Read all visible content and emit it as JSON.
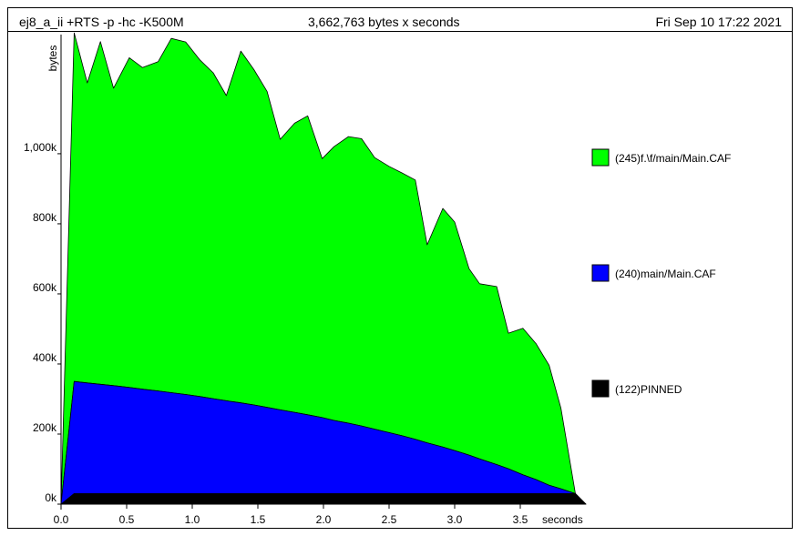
{
  "header": {
    "title": "ej8_a_ii +RTS -p -hc -K500M",
    "summary": "3,662,763 bytes x seconds",
    "date": "Fri Sep 10 17:22 2021"
  },
  "chart_data": {
    "type": "area",
    "stacked": true,
    "xlabel": "seconds",
    "ylabel": "bytes",
    "xlim": [
      0,
      4.0
    ],
    "ylim": [
      0,
      1340000
    ],
    "x_ticks": [
      {
        "value": 0.0,
        "label": "0.0"
      },
      {
        "value": 0.5,
        "label": "0.5"
      },
      {
        "value": 1.0,
        "label": "1.0"
      },
      {
        "value": 1.5,
        "label": "1.5"
      },
      {
        "value": 2.0,
        "label": "2.0"
      },
      {
        "value": 2.5,
        "label": "2.5"
      },
      {
        "value": 3.0,
        "label": "3.0"
      },
      {
        "value": 3.5,
        "label": "3.5"
      }
    ],
    "y_ticks": [
      {
        "value": 0,
        "label": "0k"
      },
      {
        "value": 200000,
        "label": "200k"
      },
      {
        "value": 400000,
        "label": "400k"
      },
      {
        "value": 600000,
        "label": "600k"
      },
      {
        "value": 800000,
        "label": "800k"
      },
      {
        "value": 1000000,
        "label": "1,000k"
      }
    ],
    "x": [
      0.0,
      0.1,
      0.2,
      0.3,
      0.4,
      0.52,
      0.62,
      0.74,
      0.84,
      0.95,
      1.06,
      1.16,
      1.26,
      1.37,
      1.47,
      1.57,
      1.67,
      1.78,
      1.88,
      1.99,
      2.08,
      2.19,
      2.29,
      2.39,
      2.5,
      2.6,
      2.7,
      2.79,
      2.91,
      3.0,
      3.11,
      3.19,
      3.32,
      3.41,
      3.52,
      3.62,
      3.72,
      3.81,
      3.92,
      4.0
    ],
    "series": [
      {
        "name": "(122)PINNED",
        "color": "#000000",
        "values": [
          0,
          30000,
          30000,
          30000,
          30000,
          30000,
          30000,
          30000,
          30000,
          30000,
          30000,
          30000,
          30000,
          30000,
          30000,
          30000,
          30000,
          30000,
          30000,
          30000,
          30000,
          30000,
          30000,
          30000,
          30000,
          30000,
          30000,
          30000,
          30000,
          30000,
          30000,
          30000,
          30000,
          30000,
          30000,
          30000,
          30000,
          30000,
          30000,
          0
        ]
      },
      {
        "name": "(240)main/Main.CAF",
        "color": "#0000ff",
        "values": [
          0,
          320000,
          316000,
          312000,
          308000,
          303000,
          298000,
          293000,
          288000,
          283000,
          277000,
          271000,
          265000,
          259000,
          253000,
          246000,
          239000,
          232000,
          225000,
          217000,
          209000,
          201000,
          193000,
          184000,
          174000,
          165000,
          155000,
          145000,
          133000,
          123000,
          110000,
          99000,
          83000,
          71000,
          54000,
          40000,
          24000,
          14000,
          0,
          0
        ]
      },
      {
        "name": "(245)f.\\f/main/Main.CAF",
        "color": "#00ff00",
        "values": [
          0,
          995000,
          856000,
          978000,
          849000,
          941000,
          918000,
          940000,
          1011000,
          1006000,
          960000,
          930000,
          871000,
          1004000,
          957000,
          902000,
          772000,
          825000,
          853000,
          739000,
          781000,
          818000,
          820000,
          775000,
          760000,
          750000,
          740000,
          565000,
          681000,
          652000,
          532000,
          500000,
          508000,
          387000,
          418000,
          388000,
          342000,
          230000,
          0,
          0
        ]
      }
    ]
  }
}
